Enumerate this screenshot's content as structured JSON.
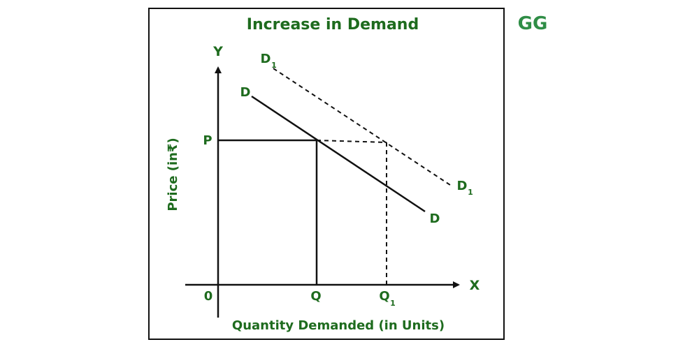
{
  "title": "Increase in Demand",
  "x_axis_title": "Quantity Demanded (in Units)",
  "y_axis_title": "Price (in₹)",
  "axes": {
    "x_letter": "X",
    "y_letter": "Y",
    "origin": "0"
  },
  "points": {
    "price": "P",
    "quantity": "Q",
    "quantity_new": "Q",
    "quantity_new_sub": "1"
  },
  "curves": {
    "original": {
      "upper_label": "D",
      "lower_label": "D",
      "line_style": "solid"
    },
    "shifted": {
      "upper_label": "D",
      "upper_sub": "1",
      "lower_label": "D",
      "lower_sub": "1",
      "line_style": "dashed"
    }
  },
  "logo": {
    "text": "GG",
    "color": "#2F8D46"
  },
  "colors": {
    "accent_green": "#1E6B1E",
    "line_black": "#111111",
    "frame_border": "#111111"
  }
}
